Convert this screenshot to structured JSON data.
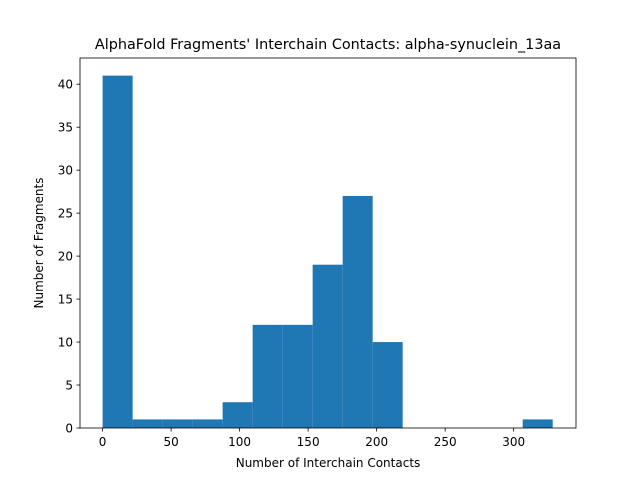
{
  "chart_data": {
    "type": "bar",
    "title": "AlphaFold Fragments' Interchain Contacts: alpha-synuclein_13aa",
    "xlabel": "Number of Interchain Contacts",
    "ylabel": "Number of Fragments",
    "xlim": [
      -16.5,
      345.5
    ],
    "ylim": [
      0,
      43.05
    ],
    "xticks": [
      0,
      50,
      100,
      150,
      200,
      250,
      300
    ],
    "yticks": [
      0,
      5,
      10,
      15,
      20,
      25,
      30,
      35,
      40
    ],
    "bin_edges": [
      0,
      21.9,
      43.8,
      65.7,
      87.6,
      109.5,
      131.4,
      153.3,
      175.2,
      197.1,
      219.0,
      240.9,
      262.8,
      284.7,
      306.6,
      328.5
    ],
    "values": [
      41,
      1,
      1,
      1,
      3,
      12,
      12,
      19,
      27,
      10,
      0,
      0,
      0,
      0,
      1
    ],
    "bar_color": "#1f77b4",
    "grid": false,
    "legend": "none"
  }
}
